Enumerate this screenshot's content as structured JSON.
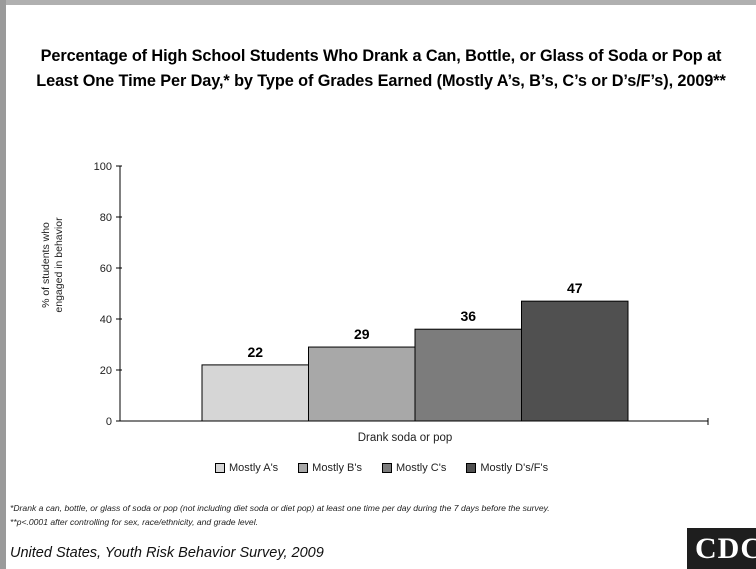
{
  "chart_data": {
    "type": "bar",
    "title_line1": "Percentage of High School Students Who Drank a Can, Bottle, or Glass of Soda or Pop at",
    "title_line2": "Least One Time Per Day,* by Type of Grades Earned (Mostly A’s, B’s, C’s or D’s/F’s), 2009**",
    "ylabel_line1": "% of students who",
    "ylabel_line2": "engaged in behavior",
    "xlabel": "Drank soda or pop",
    "ylim": [
      0,
      100
    ],
    "yticks": [
      0,
      20,
      40,
      60,
      80,
      100
    ],
    "grid": false,
    "legend_position": "bottom",
    "categories": [
      "Drank soda or pop"
    ],
    "series": [
      {
        "name": "Mostly A's",
        "values": [
          22
        ],
        "color": "#d6d6d6"
      },
      {
        "name": "Mostly B's",
        "values": [
          29
        ],
        "color": "#a8a8a8"
      },
      {
        "name": "Mostly C's",
        "values": [
          36
        ],
        "color": "#7c7c7c"
      },
      {
        "name": "Mostly D's/F's",
        "values": [
          47
        ],
        "color": "#505050"
      }
    ]
  },
  "footnotes": {
    "note1": "*Drank a can, bottle, or glass of soda or pop (not including diet soda or diet pop) at least one time per day during the 7 days before the survey.",
    "note2": "**p<.0001 after controlling for sex, race/ethnicity, and grade level."
  },
  "source": "United States, Youth Risk Behavior Survey, 2009",
  "logo_text": "CDC"
}
